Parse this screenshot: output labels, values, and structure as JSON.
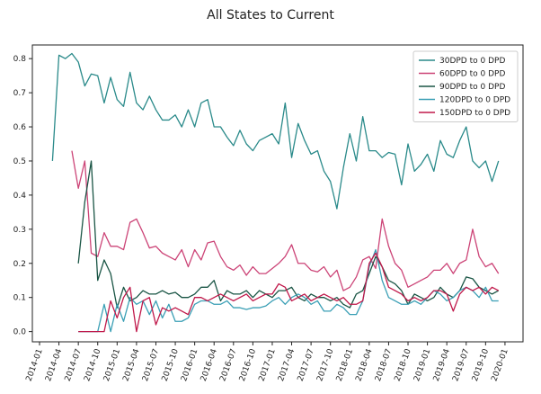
{
  "chart_data": {
    "type": "line",
    "title": "All States to Current",
    "xlabel": "",
    "ylabel": "",
    "x_start": "2014-01",
    "x_ticks": [
      "2014-01",
      "2014-04",
      "2014-07",
      "2014-10",
      "2015-01",
      "2015-04",
      "2015-07",
      "2015-10",
      "2016-01",
      "2016-04",
      "2016-07",
      "2016-10",
      "2017-01",
      "2017-04",
      "2017-07",
      "2017-10",
      "2018-01",
      "2018-04",
      "2018-07",
      "2018-10",
      "2019-01",
      "2019-04",
      "2019-07",
      "2019-10",
      "2020-01"
    ],
    "ylim": [
      -0.03,
      0.84
    ],
    "y_ticks": [
      0.0,
      0.1,
      0.2,
      0.3,
      0.4,
      0.5,
      0.6,
      0.7,
      0.8
    ],
    "y_tick_labels": [
      "0.0",
      "0.1",
      "0.2",
      "0.3",
      "0.4",
      "0.5",
      "0.6",
      "0.7",
      "0.8"
    ],
    "grid": false,
    "legend_position": "top-right",
    "series": [
      {
        "name": "30DPD to 0 DPD",
        "color": "#2a8a8a",
        "x": [
          "2014-03",
          "2014-04",
          "2014-05",
          "2014-06",
          "2014-07",
          "2014-08",
          "2014-09",
          "2014-10",
          "2014-11",
          "2014-12",
          "2015-01",
          "2015-02",
          "2015-03",
          "2015-04",
          "2015-05",
          "2015-06",
          "2015-07",
          "2015-08",
          "2015-09",
          "2015-10",
          "2015-11",
          "2015-12",
          "2016-01",
          "2016-02",
          "2016-03",
          "2016-04",
          "2016-05",
          "2016-06",
          "2016-07",
          "2016-08",
          "2016-09",
          "2016-10",
          "2016-11",
          "2016-12",
          "2017-01",
          "2017-02",
          "2017-03",
          "2017-04",
          "2017-05",
          "2017-06",
          "2017-07",
          "2017-08",
          "2017-09",
          "2017-10",
          "2017-11",
          "2017-12",
          "2018-01",
          "2018-02",
          "2018-03",
          "2018-04",
          "2018-05",
          "2018-06",
          "2018-07",
          "2018-08",
          "2018-09",
          "2018-10",
          "2018-11",
          "2018-12",
          "2019-01",
          "2019-02",
          "2019-03",
          "2019-04",
          "2019-05",
          "2019-06",
          "2019-07",
          "2019-08",
          "2019-09",
          "2019-10",
          "2019-11",
          "2019-12"
        ],
        "values": [
          0.5,
          0.81,
          0.8,
          0.815,
          0.79,
          0.72,
          0.755,
          0.75,
          0.67,
          0.745,
          0.68,
          0.66,
          0.76,
          0.67,
          0.65,
          0.69,
          0.65,
          0.62,
          0.62,
          0.635,
          0.6,
          0.65,
          0.6,
          0.67,
          0.68,
          0.6,
          0.6,
          0.57,
          0.545,
          0.59,
          0.55,
          0.53,
          0.56,
          0.57,
          0.58,
          0.55,
          0.67,
          0.51,
          0.61,
          0.56,
          0.52,
          0.53,
          0.47,
          0.44,
          0.36,
          0.48,
          0.58,
          0.5,
          0.63,
          0.53,
          0.53,
          0.51,
          0.525,
          0.52,
          0.43,
          0.55,
          0.47,
          0.49,
          0.52,
          0.47,
          0.56,
          0.52,
          0.51,
          0.56,
          0.6,
          0.5,
          0.48,
          0.5,
          0.44,
          0.5
        ]
      },
      {
        "name": "60DPD to 0 DPD",
        "color": "#cc4477",
        "x": [
          "2014-06",
          "2014-07",
          "2014-08",
          "2014-09",
          "2014-10",
          "2014-11",
          "2014-12",
          "2015-01",
          "2015-02",
          "2015-03",
          "2015-04",
          "2015-05",
          "2015-06",
          "2015-07",
          "2015-08",
          "2015-09",
          "2015-10",
          "2015-11",
          "2015-12",
          "2016-01",
          "2016-02",
          "2016-03",
          "2016-04",
          "2016-05",
          "2016-06",
          "2016-07",
          "2016-08",
          "2016-09",
          "2016-10",
          "2016-11",
          "2016-12",
          "2017-01",
          "2017-02",
          "2017-03",
          "2017-04",
          "2017-05",
          "2017-06",
          "2017-07",
          "2017-08",
          "2017-09",
          "2017-10",
          "2017-11",
          "2017-12",
          "2018-01",
          "2018-02",
          "2018-03",
          "2018-04",
          "2018-05",
          "2018-06",
          "2018-07",
          "2018-08",
          "2018-09",
          "2018-10",
          "2018-11",
          "2018-12",
          "2019-01",
          "2019-02",
          "2019-03",
          "2019-04",
          "2019-05",
          "2019-06",
          "2019-07",
          "2019-08",
          "2019-09",
          "2019-10",
          "2019-11",
          "2019-12"
        ],
        "values": [
          0.53,
          0.42,
          0.5,
          0.23,
          0.22,
          0.29,
          0.25,
          0.25,
          0.24,
          0.32,
          0.33,
          0.29,
          0.245,
          0.25,
          0.23,
          0.22,
          0.21,
          0.24,
          0.19,
          0.24,
          0.21,
          0.26,
          0.265,
          0.22,
          0.19,
          0.18,
          0.195,
          0.165,
          0.19,
          0.17,
          0.17,
          0.185,
          0.2,
          0.22,
          0.255,
          0.2,
          0.2,
          0.18,
          0.175,
          0.19,
          0.16,
          0.18,
          0.12,
          0.13,
          0.16,
          0.21,
          0.22,
          0.185,
          0.33,
          0.25,
          0.2,
          0.18,
          0.13,
          0.14,
          0.15,
          0.16,
          0.18,
          0.18,
          0.2,
          0.17,
          0.2,
          0.21,
          0.3,
          0.22,
          0.19,
          0.2,
          0.17
        ]
      },
      {
        "name": "90DPD to 0 DPD",
        "color": "#1a5545",
        "x": [
          "2014-07",
          "2014-08",
          "2014-09",
          "2014-10",
          "2014-11",
          "2014-12",
          "2015-01",
          "2015-02",
          "2015-03",
          "2015-04",
          "2015-05",
          "2015-06",
          "2015-07",
          "2015-08",
          "2015-09",
          "2015-10",
          "2015-11",
          "2015-12",
          "2016-01",
          "2016-02",
          "2016-03",
          "2016-04",
          "2016-05",
          "2016-06",
          "2016-07",
          "2016-08",
          "2016-09",
          "2016-10",
          "2016-11",
          "2016-12",
          "2017-01",
          "2017-02",
          "2017-03",
          "2017-04",
          "2017-05",
          "2017-06",
          "2017-07",
          "2017-08",
          "2017-09",
          "2017-10",
          "2017-11",
          "2017-12",
          "2018-01",
          "2018-02",
          "2018-03",
          "2018-04",
          "2018-05",
          "2018-06",
          "2018-07",
          "2018-08",
          "2018-09",
          "2018-10",
          "2018-11",
          "2018-12",
          "2019-01",
          "2019-02",
          "2019-03",
          "2019-04",
          "2019-05",
          "2019-06",
          "2019-07",
          "2019-08",
          "2019-09",
          "2019-10",
          "2019-11",
          "2019-12"
        ],
        "values": [
          0.2,
          0.38,
          0.5,
          0.15,
          0.21,
          0.17,
          0.07,
          0.13,
          0.09,
          0.1,
          0.12,
          0.11,
          0.11,
          0.12,
          0.11,
          0.115,
          0.1,
          0.1,
          0.11,
          0.13,
          0.13,
          0.15,
          0.09,
          0.12,
          0.11,
          0.11,
          0.12,
          0.1,
          0.12,
          0.11,
          0.1,
          0.12,
          0.12,
          0.13,
          0.1,
          0.09,
          0.11,
          0.1,
          0.1,
          0.09,
          0.1,
          0.08,
          0.07,
          0.11,
          0.12,
          0.17,
          0.22,
          0.19,
          0.15,
          0.14,
          0.12,
          0.08,
          0.11,
          0.1,
          0.09,
          0.1,
          0.13,
          0.11,
          0.1,
          0.12,
          0.16,
          0.155,
          0.13,
          0.12,
          0.11,
          0.12
        ]
      },
      {
        "name": "120DPD to 0 DPD",
        "color": "#3a9fb5",
        "x": [
          "2014-07",
          "2014-08",
          "2014-09",
          "2014-10",
          "2014-11",
          "2014-12",
          "2015-01",
          "2015-02",
          "2015-03",
          "2015-04",
          "2015-05",
          "2015-06",
          "2015-07",
          "2015-08",
          "2015-09",
          "2015-10",
          "2015-11",
          "2015-12",
          "2016-01",
          "2016-02",
          "2016-03",
          "2016-04",
          "2016-05",
          "2016-06",
          "2016-07",
          "2016-08",
          "2016-09",
          "2016-10",
          "2016-11",
          "2016-12",
          "2017-01",
          "2017-02",
          "2017-03",
          "2017-04",
          "2017-05",
          "2017-06",
          "2017-07",
          "2017-08",
          "2017-09",
          "2017-10",
          "2017-11",
          "2017-12",
          "2018-01",
          "2018-02",
          "2018-03",
          "2018-04",
          "2018-05",
          "2018-06",
          "2018-07",
          "2018-08",
          "2018-09",
          "2018-10",
          "2018-11",
          "2018-12",
          "2019-01",
          "2019-02",
          "2019-03",
          "2019-04",
          "2019-05",
          "2019-06",
          "2019-07",
          "2019-08",
          "2019-09",
          "2019-10",
          "2019-11",
          "2019-12"
        ],
        "values": [
          0.0,
          0.0,
          0.0,
          0.0,
          0.08,
          0.0,
          0.08,
          0.03,
          0.1,
          0.08,
          0.09,
          0.05,
          0.09,
          0.04,
          0.08,
          0.03,
          0.03,
          0.04,
          0.08,
          0.09,
          0.09,
          0.08,
          0.08,
          0.09,
          0.07,
          0.07,
          0.065,
          0.07,
          0.07,
          0.075,
          0.09,
          0.1,
          0.08,
          0.1,
          0.11,
          0.1,
          0.08,
          0.09,
          0.06,
          0.06,
          0.08,
          0.07,
          0.05,
          0.05,
          0.09,
          0.19,
          0.24,
          0.15,
          0.1,
          0.09,
          0.08,
          0.08,
          0.09,
          0.08,
          0.1,
          0.12,
          0.11,
          0.09,
          0.1,
          0.12,
          0.13,
          0.12,
          0.1,
          0.13,
          0.09,
          0.09
        ]
      },
      {
        "name": "150DPD to 0 DPD",
        "color": "#c0184a",
        "x": [
          "2014-07",
          "2014-08",
          "2014-09",
          "2014-10",
          "2014-11",
          "2014-12",
          "2015-01",
          "2015-02",
          "2015-03",
          "2015-04",
          "2015-05",
          "2015-06",
          "2015-07",
          "2015-08",
          "2015-09",
          "2015-10",
          "2015-11",
          "2015-12",
          "2016-01",
          "2016-02",
          "2016-03",
          "2016-04",
          "2016-05",
          "2016-06",
          "2016-07",
          "2016-08",
          "2016-09",
          "2016-10",
          "2016-11",
          "2016-12",
          "2017-01",
          "2017-02",
          "2017-03",
          "2017-04",
          "2017-05",
          "2017-06",
          "2017-07",
          "2017-08",
          "2017-09",
          "2017-10",
          "2017-11",
          "2017-12",
          "2018-01",
          "2018-02",
          "2018-03",
          "2018-04",
          "2018-05",
          "2018-06",
          "2018-07",
          "2018-08",
          "2018-09",
          "2018-10",
          "2018-11",
          "2018-12",
          "2019-01",
          "2019-02",
          "2019-03",
          "2019-04",
          "2019-05",
          "2019-06",
          "2019-07",
          "2019-08",
          "2019-09",
          "2019-10",
          "2019-11",
          "2019-12"
        ],
        "values": [
          0.0,
          0.0,
          0.0,
          0.0,
          0.0,
          0.09,
          0.04,
          0.1,
          0.13,
          0.0,
          0.09,
          0.1,
          0.02,
          0.07,
          0.06,
          0.07,
          0.06,
          0.05,
          0.1,
          0.1,
          0.09,
          0.1,
          0.11,
          0.1,
          0.09,
          0.1,
          0.11,
          0.09,
          0.1,
          0.11,
          0.11,
          0.14,
          0.13,
          0.09,
          0.1,
          0.11,
          0.09,
          0.1,
          0.11,
          0.1,
          0.09,
          0.1,
          0.08,
          0.08,
          0.09,
          0.2,
          0.23,
          0.19,
          0.13,
          0.12,
          0.11,
          0.09,
          0.1,
          0.09,
          0.1,
          0.12,
          0.12,
          0.11,
          0.06,
          0.11,
          0.13,
          0.12,
          0.13,
          0.11,
          0.13,
          0.12
        ]
      }
    ]
  }
}
